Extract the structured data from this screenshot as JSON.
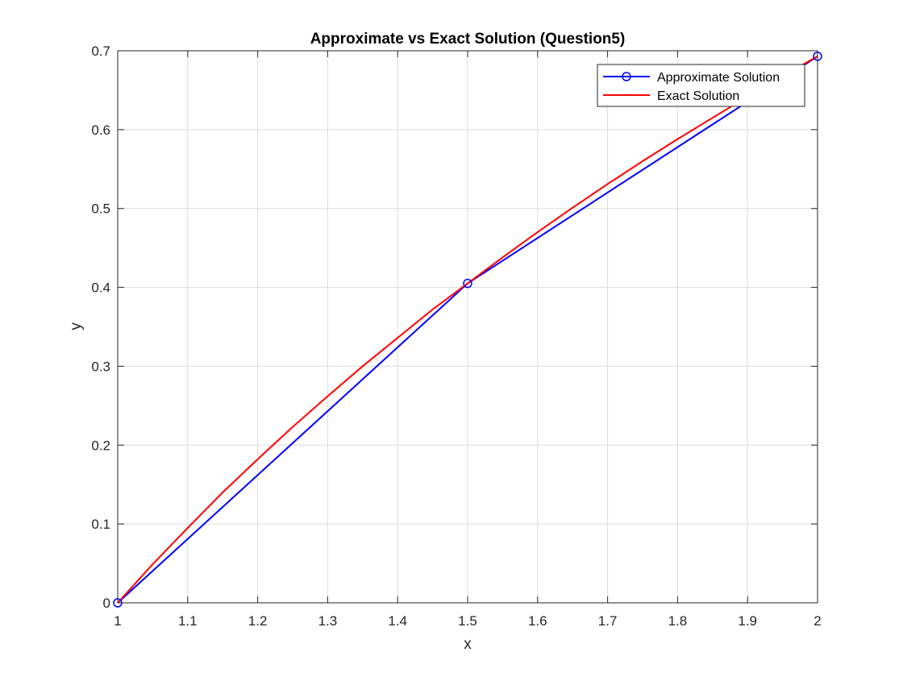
{
  "chart_data": {
    "type": "line",
    "title": "Approximate vs Exact Solution (Question5)",
    "xlabel": "x",
    "ylabel": "y",
    "xlim": [
      1,
      2
    ],
    "ylim": [
      0,
      0.7
    ],
    "xticks": [
      1,
      1.1,
      1.2,
      1.3,
      1.4,
      1.5,
      1.6,
      1.7,
      1.8,
      1.9,
      2
    ],
    "xtick_labels": [
      "1",
      "1.1",
      "1.2",
      "1.3",
      "1.4",
      "1.5",
      "1.6",
      "1.7",
      "1.8",
      "1.9",
      "2"
    ],
    "yticks": [
      0,
      0.1,
      0.2,
      0.3,
      0.4,
      0.5,
      0.6,
      0.7
    ],
    "ytick_labels": [
      "0",
      "0.1",
      "0.2",
      "0.3",
      "0.4",
      "0.5",
      "0.6",
      "0.7"
    ],
    "grid": true,
    "legend_position": "top-right",
    "series": [
      {
        "name": "Approximate Solution",
        "color": "#0000ff",
        "marker": "circle",
        "x": [
          1,
          1.5,
          2
        ],
        "y": [
          0,
          0.405,
          0.693
        ]
      },
      {
        "name": "Exact Solution",
        "color": "#ff0000",
        "marker": "none",
        "x": [
          1,
          1.05,
          1.1,
          1.15,
          1.2,
          1.25,
          1.3,
          1.35,
          1.4,
          1.45,
          1.5,
          1.55,
          1.6,
          1.65,
          1.7,
          1.75,
          1.8,
          1.85,
          1.9,
          1.95,
          2
        ],
        "y": [
          0,
          0.049,
          0.095,
          0.14,
          0.182,
          0.223,
          0.262,
          0.3,
          0.336,
          0.372,
          0.405,
          0.438,
          0.47,
          0.501,
          0.531,
          0.56,
          0.588,
          0.615,
          0.642,
          0.668,
          0.693
        ]
      }
    ]
  }
}
